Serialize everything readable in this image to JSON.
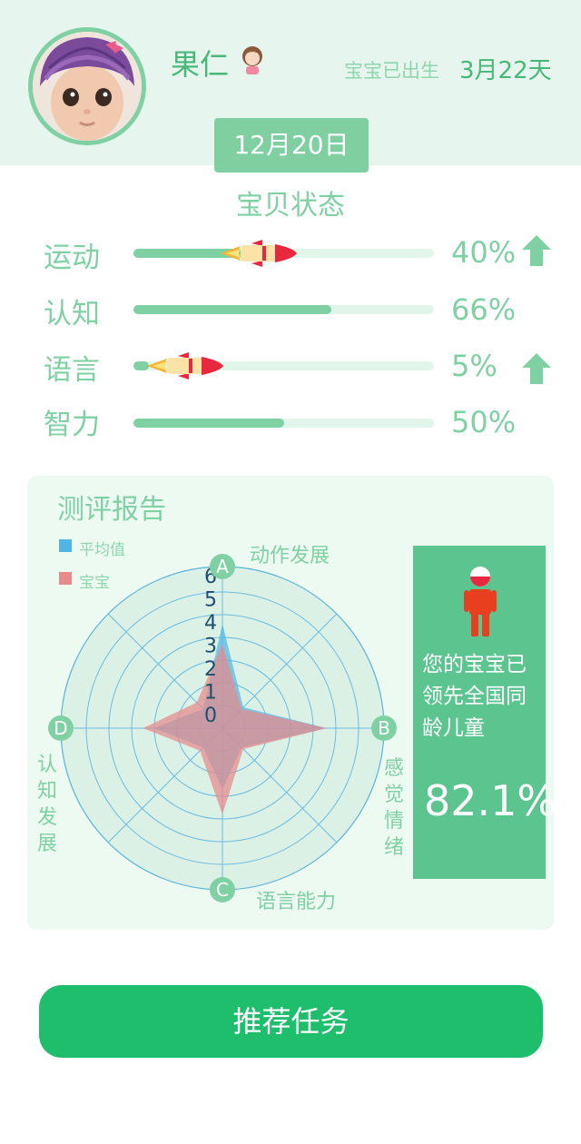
{
  "profile": {
    "name": "果仁",
    "age_label": "宝宝已出生",
    "age_value": "3月22天",
    "date": "12月20日"
  },
  "status": {
    "title": "宝贝状态",
    "metrics": [
      {
        "label": "运动",
        "value": 40,
        "display": "40%",
        "trend_up": true
      },
      {
        "label": "认知",
        "value": 66,
        "display": "66%",
        "trend_up": false
      },
      {
        "label": "语言",
        "value": 5,
        "display": "5%",
        "trend_up": true
      },
      {
        "label": "智力",
        "value": 50,
        "display": "50%",
        "trend_up": false
      }
    ]
  },
  "report": {
    "title": "测评报告",
    "legend": [
      {
        "label": "平均值",
        "color": "#4fb6e6"
      },
      {
        "label": "宝宝",
        "color": "#e8898a"
      }
    ],
    "axes": [
      {
        "letter": "A",
        "name": "动作发展"
      },
      {
        "letter": "B",
        "name": "感觉情绪"
      },
      {
        "letter": "C",
        "name": "语言能力"
      },
      {
        "letter": "D",
        "name": "认知发展"
      }
    ],
    "scale_ticks": [
      "6",
      "5",
      "4",
      "3",
      "2",
      "1",
      "0"
    ],
    "lead_text": "您的宝宝已领先全国同龄儿童",
    "lead_value": "82.1%"
  },
  "chart_data": {
    "type": "radar",
    "scale_max": 6,
    "spokes": 8,
    "series": [
      {
        "name": "平均值",
        "color": "#4fb6e6",
        "values": [
          4.6,
          1.3,
          4.6,
          1.2,
          2.7,
          1.2,
          3.0,
          1.2
        ]
      },
      {
        "name": "宝宝",
        "color": "#e8898a",
        "values": [
          3.7,
          1.2,
          4.6,
          1.3,
          3.8,
          1.4,
          3.5,
          1.6
        ]
      }
    ]
  },
  "actions": {
    "recommend_label": "推荐任务"
  },
  "colors": {
    "accent": "#7fd1a3",
    "header_bg": "#e6f6ee",
    "button": "#1fbe6c",
    "panel": "#5cc58f"
  }
}
